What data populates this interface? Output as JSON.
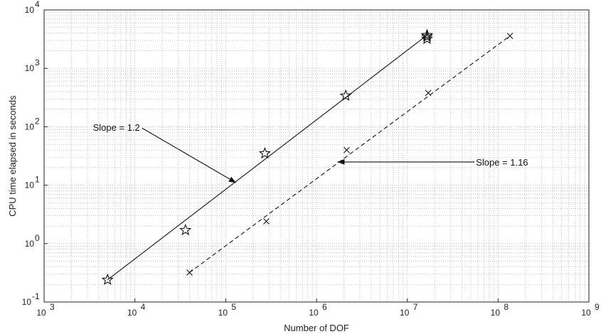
{
  "chart_data": {
    "type": "scatter",
    "xscale": "log",
    "yscale": "log",
    "xlim": [
      1000,
      1000000000
    ],
    "ylim": [
      0.1,
      10000
    ],
    "grid": true,
    "xlabel": "Number of DOF",
    "ylabel": "CPU time elapsed in seconds",
    "x_ticks": [
      {
        "base": "10",
        "exp": "3"
      },
      {
        "base": "10",
        "exp": "4"
      },
      {
        "base": "10",
        "exp": "5"
      },
      {
        "base": "10",
        "exp": "6"
      },
      {
        "base": "10",
        "exp": "7"
      },
      {
        "base": "10",
        "exp": "8"
      },
      {
        "base": "10",
        "exp": "9"
      }
    ],
    "y_ticks": [
      {
        "base": "10",
        "exp": "-1"
      },
      {
        "base": "10",
        "exp": "0"
      },
      {
        "base": "10",
        "exp": "1"
      },
      {
        "base": "10",
        "exp": "2"
      },
      {
        "base": "10",
        "exp": "3"
      },
      {
        "base": "10",
        "exp": "4"
      }
    ],
    "series": [
      {
        "marker": "star",
        "line_style": "solid",
        "x": [
          5000,
          36000,
          270000,
          2100000,
          16500000,
          16500000,
          16500000
        ],
        "y": [
          0.24,
          1.7,
          35,
          340,
          3200,
          3500,
          3700
        ],
        "fit": {
          "x": [
            5000,
            16500000
          ],
          "y": [
            0.24,
            3700
          ]
        }
      },
      {
        "marker": "x",
        "line_style": "dashed",
        "x": [
          40000,
          280000,
          2150000,
          17000000,
          135000000
        ],
        "y": [
          0.32,
          2.4,
          40,
          380,
          3600
        ],
        "fit": {
          "x": [
            40000,
            135000000
          ],
          "y": [
            0.32,
            3600
          ]
        }
      }
    ],
    "annotations": [
      {
        "text": "Slope = 1.2",
        "arrow_from": {
          "x": 12000,
          "y": 95
        },
        "arrow_to": {
          "x": 130000,
          "y": 11
        }
      },
      {
        "text": "Slope = 1.16",
        "arrow_from": {
          "x": 55000000,
          "y": 25
        },
        "arrow_to": {
          "x": 1700000,
          "y": 25
        }
      }
    ]
  }
}
